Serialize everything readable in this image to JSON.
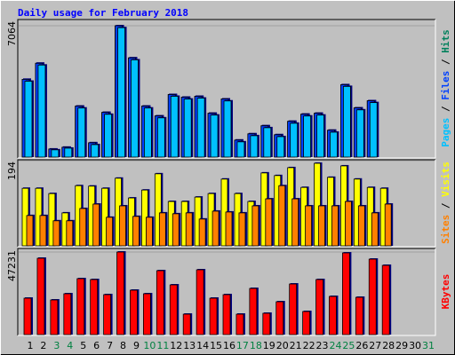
{
  "chart_data": [
    {
      "type": "bar",
      "title": "Daily usage for February 2018",
      "ylim": [
        0,
        7064
      ],
      "yticks": [
        7064
      ],
      "legend_separator": " / ",
      "series": [
        {
          "name": "Hits",
          "color": "#00805c",
          "values": [
            4181,
            5046,
            432,
            529,
            2739,
            769,
            2403,
            7064,
            5334,
            2739,
            2211,
            3364,
            3220,
            3268,
            2355,
            3124,
            913,
            1249,
            1682,
            1201,
            1922,
            2307,
            2355,
            1442,
            3892,
            2643,
            3028,
            null,
            null,
            null,
            null
          ]
        },
        {
          "name": "Files",
          "color": "#0040ff",
          "values": [
            4181,
            5046,
            432,
            529,
            2739,
            769,
            2403,
            7064,
            5334,
            2739,
            2211,
            3364,
            3220,
            3268,
            2355,
            3124,
            913,
            1249,
            1682,
            1201,
            1922,
            2307,
            2355,
            1442,
            3892,
            2643,
            3028,
            null,
            null,
            null,
            null
          ]
        },
        {
          "name": "Pages",
          "color": "#00c0ff",
          "values": [
            4080,
            4950,
            390,
            480,
            2640,
            670,
            2300,
            6960,
            5230,
            2640,
            2110,
            3270,
            3120,
            3170,
            2260,
            3020,
            820,
            1150,
            1580,
            1100,
            1820,
            2210,
            2260,
            1340,
            3800,
            2540,
            2930,
            null,
            null,
            null,
            null
          ]
        }
      ]
    },
    {
      "type": "bar",
      "ylim": [
        0,
        194
      ],
      "yticks": [
        194
      ],
      "legend_separator": " / ",
      "series": [
        {
          "name": "Visits",
          "color": "#ffff00",
          "values": [
            131,
            131,
            119,
            75,
            137,
            136,
            131,
            154,
            109,
            127,
            164,
            101,
            101,
            111,
            119,
            152,
            119,
            101,
            166,
            160,
            178,
            133,
            188,
            156,
            182,
            152,
            133,
            131,
            null,
            null,
            null
          ]
        },
        {
          "name": "Sites",
          "color": "#ff8000",
          "values": [
            69,
            69,
            57,
            57,
            85,
            95,
            65,
            91,
            67,
            65,
            75,
            73,
            75,
            61,
            79,
            77,
            75,
            91,
            107,
            137,
            107,
            91,
            91,
            91,
            101,
            91,
            75,
            95,
            null,
            null,
            null
          ]
        }
      ]
    },
    {
      "type": "bar",
      "ylim": [
        0,
        47231
      ],
      "yticks": [
        47231
      ],
      "categories": [
        "1",
        "2",
        "3",
        "4",
        "5",
        "6",
        "7",
        "8",
        "9",
        "10",
        "11",
        "12",
        "13",
        "14",
        "15",
        "16",
        "17",
        "18",
        "19",
        "20",
        "21",
        "22",
        "23",
        "24",
        "25",
        "26",
        "27",
        "28",
        "29",
        "30",
        "31"
      ],
      "category_colors": [
        "#000000",
        "#000000",
        "#008040",
        "#008040",
        "#000000",
        "#000000",
        "#000000",
        "#000000",
        "#000000",
        "#008040",
        "#008040",
        "#000000",
        "#000000",
        "#000000",
        "#000000",
        "#000000",
        "#008040",
        "#008040",
        "#000000",
        "#000000",
        "#000000",
        "#000000",
        "#000000",
        "#008040",
        "#008040",
        "#000000",
        "#000000",
        "#000000",
        "#000000",
        "#000000",
        "#008040"
      ],
      "series": [
        {
          "name": "KBytes",
          "color": "#ff0000",
          "values": [
            20822,
            43676,
            19807,
            23362,
            31995,
            31487,
            22854,
            47231,
            25393,
            23362,
            36566,
            28440,
            11681,
            37074,
            20822,
            22854,
            11681,
            26409,
            12189,
            18791,
            28948,
            13204,
            31487,
            21838,
            46723,
            21330,
            43168,
            39613,
            null,
            null,
            null
          ]
        }
      ]
    }
  ]
}
